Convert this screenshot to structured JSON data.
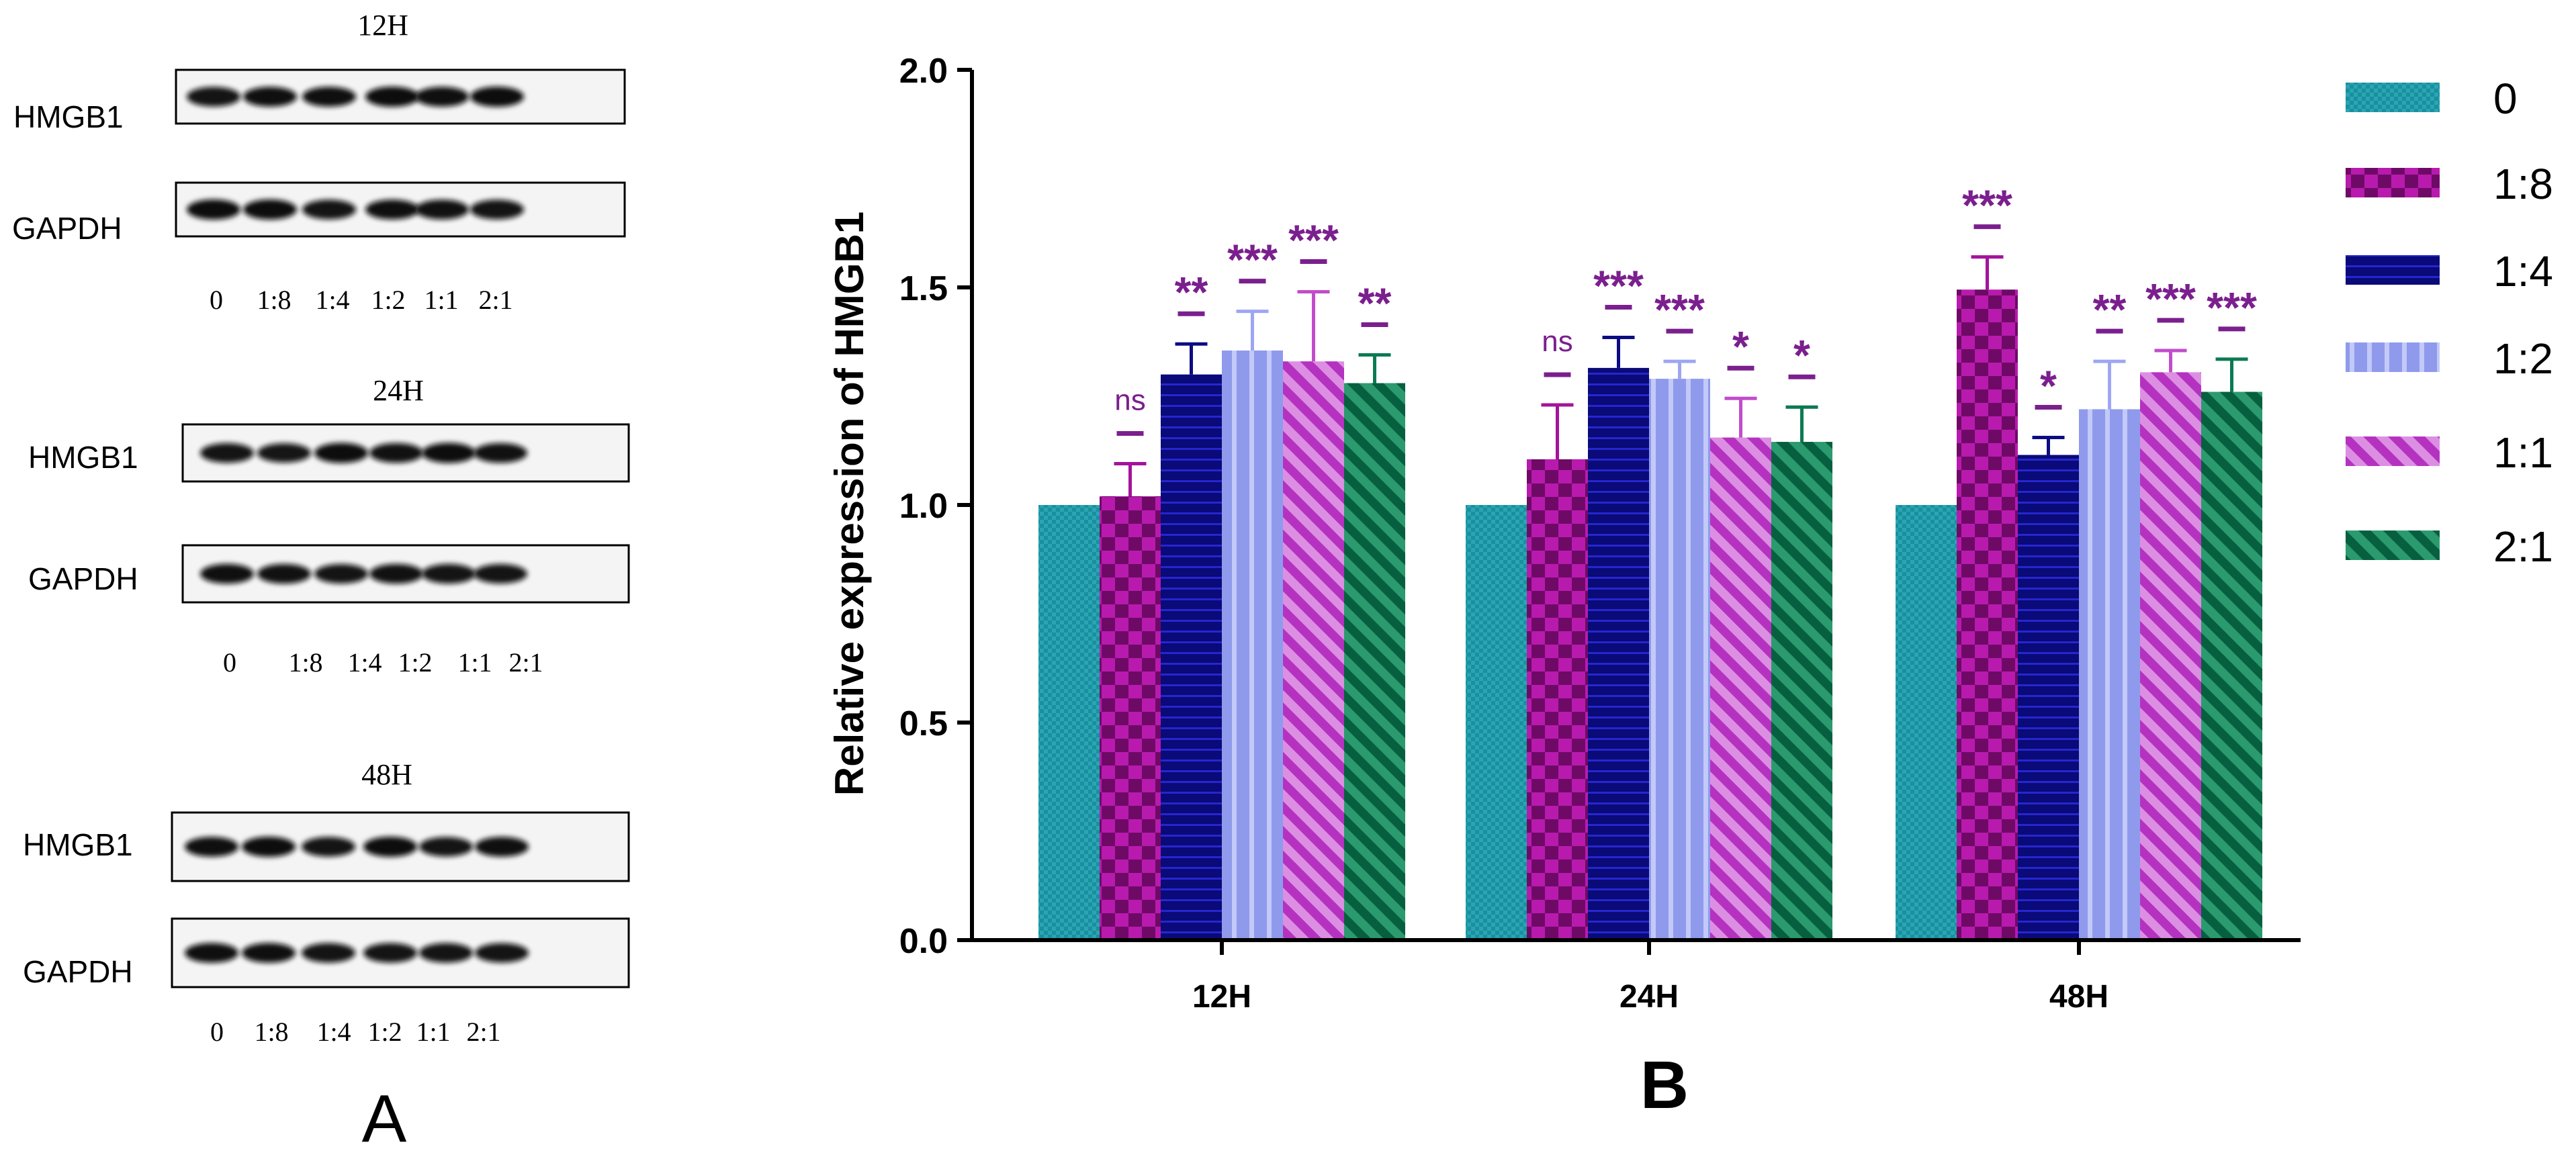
{
  "panel_a": {
    "label": "A",
    "row_labels": {
      "target": "HMGB1",
      "control": "GAPDH"
    },
    "lanes": [
      "0",
      "1:8",
      "1:4",
      "1:2",
      "1:1",
      "2:1"
    ],
    "blots": [
      {
        "time": "12H"
      },
      {
        "time": "24H"
      },
      {
        "time": "48H"
      }
    ]
  },
  "panel_b": {
    "label": "B"
  },
  "colors": {
    "0": "#1f9fae",
    "1:8": "#a4139b",
    "1:4": "#0c0c82",
    "1:2": "#9da6f2",
    "1:1": "#c24ccc",
    "2:1": "#0b7a52",
    "annotation": "#7b1f8e"
  },
  "chart_data": {
    "type": "bar",
    "title": "",
    "xlabel": "",
    "ylabel": "Relative expression of HMGB1",
    "ylim": [
      0,
      2.0
    ],
    "yticks": [
      "0.0",
      "0.5",
      "1.0",
      "1.5",
      "2.0"
    ],
    "categories": [
      "12H",
      "24H",
      "48H"
    ],
    "legend_position": "right",
    "series": [
      {
        "name": "0",
        "values": [
          1.0,
          1.0,
          1.0
        ],
        "errors": [
          0,
          0,
          0
        ],
        "significance": [
          "",
          "",
          ""
        ]
      },
      {
        "name": "1:8",
        "values": [
          1.02,
          1.105,
          1.495
        ],
        "errors": [
          0.075,
          0.125,
          0.075
        ],
        "significance": [
          "ns",
          "ns",
          "***"
        ]
      },
      {
        "name": "1:4",
        "values": [
          1.3,
          1.315,
          1.115
        ],
        "errors": [
          0.07,
          0.07,
          0.04
        ],
        "significance": [
          "**",
          "***",
          "*"
        ]
      },
      {
        "name": "1:2",
        "values": [
          1.355,
          1.29,
          1.22
        ],
        "errors": [
          0.09,
          0.04,
          0.11
        ],
        "significance": [
          "***",
          "***",
          "**"
        ]
      },
      {
        "name": "1:1",
        "values": [
          1.33,
          1.155,
          1.305
        ],
        "errors": [
          0.16,
          0.09,
          0.05
        ],
        "significance": [
          "***",
          "*",
          "***"
        ]
      },
      {
        "name": "2:1",
        "values": [
          1.28,
          1.145,
          1.26
        ],
        "errors": [
          0.065,
          0.08,
          0.075
        ],
        "significance": [
          "**",
          "*",
          "***"
        ]
      }
    ]
  }
}
